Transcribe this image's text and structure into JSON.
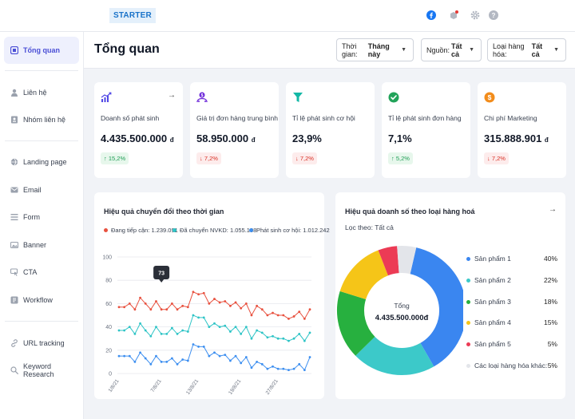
{
  "app": {
    "brand": "STARTER"
  },
  "top_icons": [
    "facebook-icon",
    "notification-icon",
    "settings-gear-icon",
    "help-icon"
  ],
  "sidebar": {
    "items": [
      {
        "label": "Tổng quan",
        "icon": "dashboard-icon",
        "active": true
      },
      {
        "label": "Liên hệ",
        "icon": "contacts-icon"
      },
      {
        "label": "Nhóm liên hệ",
        "icon": "contact-group-icon"
      },
      {
        "label": "Landing page",
        "icon": "landing-page-icon"
      },
      {
        "label": "Email",
        "icon": "email-icon"
      },
      {
        "label": "Form",
        "icon": "form-icon"
      },
      {
        "label": "Banner",
        "icon": "banner-icon"
      },
      {
        "label": "CTA",
        "icon": "cta-icon"
      },
      {
        "label": "Workflow",
        "icon": "workflow-icon"
      },
      {
        "label": "URL tracking",
        "icon": "link-icon"
      },
      {
        "label": "Keyword Research",
        "icon": "keyword-search-icon"
      }
    ]
  },
  "header": {
    "title": "Tổng quan",
    "filters": [
      {
        "label": "Thời gian:",
        "value": "Tháng này"
      },
      {
        "label": "Nguồn:",
        "value": "Tất cả"
      },
      {
        "label": "Loại hàng hóa:",
        "value": "Tất cả"
      }
    ]
  },
  "stats": [
    {
      "label": "Doanh số phát sinh",
      "value": "4.435.500.000",
      "unit": "đ",
      "change": "15,2%",
      "trend": "up",
      "icon": "growth-chart-icon",
      "color": "#4f46e5"
    },
    {
      "label": "Giá trị đơn hàng trung bình",
      "value": "58.950.000",
      "unit": "đ",
      "change": "7,2%",
      "trend": "down",
      "icon": "order-value-icon",
      "color": "#6d28d9"
    },
    {
      "label": "Tỉ lệ phát sinh cơ hội",
      "value": "23,9%",
      "unit": "",
      "change": "7,2%",
      "trend": "down",
      "icon": "funnel-icon",
      "color": "#14b8a6"
    },
    {
      "label": "Tỉ lệ phát sinh đơn hàng",
      "value": "7,1%",
      "unit": "",
      "change": "5,2%",
      "trend": "up",
      "icon": "check-circle-icon",
      "color": "#22a35a"
    },
    {
      "label": "Chi phí Marketing",
      "value": "315.888.901",
      "unit": "đ",
      "change": "7,2%",
      "trend": "down",
      "icon": "dollar-coin-icon",
      "color": "#f28c1b"
    }
  ],
  "conversion_panel": {
    "title": "Hiệu quả chuyển đổi theo thời gian",
    "tooltip_value": "73"
  },
  "sales_panel": {
    "title": "Hiệu quả doanh số theo loại hàng hoá",
    "filter_label": "Lọc theo:",
    "filter_value": "Tất cả",
    "center_label": "Tổng",
    "center_value": "4.435.500.000",
    "center_unit": "đ"
  },
  "chart_data": [
    {
      "type": "line",
      "title": "Hiệu quả chuyển đổi theo thời gian",
      "ylim": [
        0,
        100
      ],
      "y_ticks": [
        0,
        20,
        40,
        60,
        80,
        100
      ],
      "x_tick_labels": [
        "1/8/21",
        "7/8/21",
        "13/8/21",
        "19/8/21",
        "27/8/21"
      ],
      "grid": true,
      "legend_position": "top",
      "series": [
        {
          "name": "Đang tiếp cận: 1.239.091",
          "color": "#e8513f",
          "values": [
            57,
            57,
            60,
            55,
            65,
            60,
            55,
            62,
            55,
            55,
            60,
            55,
            58,
            57,
            70,
            68,
            69,
            60,
            64,
            61,
            62,
            58,
            61,
            56,
            60,
            50,
            58,
            55,
            50,
            52,
            50,
            50,
            47,
            49,
            53,
            47,
            55
          ]
        },
        {
          "name": "Đã chuyển NVKD: 1.055.108",
          "color": "#2ec4c6",
          "values": [
            37,
            37,
            40,
            34,
            43,
            37,
            32,
            40,
            34,
            34,
            39,
            34,
            37,
            36,
            50,
            48,
            48,
            40,
            43,
            40,
            41,
            36,
            40,
            34,
            40,
            30,
            37,
            35,
            31,
            32,
            30,
            30,
            28,
            30,
            34,
            28,
            35
          ]
        },
        {
          "name": "Phát sinh cơ hội: 1.012.242",
          "color": "#3d8ff0",
          "values": [
            15,
            15,
            15,
            10,
            18,
            13,
            8,
            15,
            10,
            10,
            13,
            8,
            12,
            11,
            25,
            23,
            23,
            15,
            18,
            15,
            16,
            11,
            15,
            9,
            14,
            5,
            10,
            8,
            4,
            6,
            4,
            4,
            3,
            4,
            8,
            3,
            14
          ]
        }
      ]
    },
    {
      "type": "pie",
      "title": "Hiệu quả doanh số theo loại hàng hoá",
      "slices": [
        {
          "name": "Sản phẩm 1",
          "value": 40,
          "label": "40%",
          "color": "#3a86f0"
        },
        {
          "name": "Sản phẩm 2",
          "value": 22,
          "label": "22%",
          "color": "#3cc9c9"
        },
        {
          "name": "Sản phẩm 3",
          "value": 18,
          "label": "18%",
          "color": "#27b03f"
        },
        {
          "name": "Sản phẩm 4",
          "value": 15,
          "label": "15%",
          "color": "#f5c518"
        },
        {
          "name": "Sản phẩm 5",
          "value": 5,
          "label": "5%",
          "color": "#ec3b55"
        },
        {
          "name": "Các loại hàng hóa khác:",
          "value": 5,
          "label": "5%",
          "color": "#e3e5ea"
        }
      ]
    }
  ]
}
